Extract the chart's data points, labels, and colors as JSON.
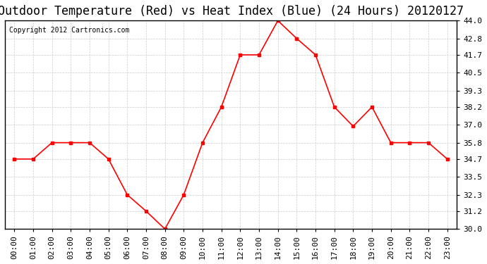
{
  "title": "Outdoor Temperature (Red) vs Heat Index (Blue) (24 Hours) 20120127",
  "copyright_text": "Copyright 2012 Cartronics.com",
  "x_labels": [
    "00:00",
    "01:00",
    "02:00",
    "03:00",
    "04:00",
    "05:00",
    "06:00",
    "07:00",
    "08:00",
    "09:00",
    "10:00",
    "11:00",
    "12:00",
    "13:00",
    "14:00",
    "15:00",
    "16:00",
    "17:00",
    "18:00",
    "19:00",
    "20:00",
    "21:00",
    "22:00",
    "23:00"
  ],
  "temp_values": [
    34.7,
    34.7,
    35.8,
    35.8,
    35.8,
    34.7,
    32.3,
    31.2,
    30.0,
    32.3,
    35.8,
    38.2,
    41.7,
    41.7,
    44.0,
    42.8,
    41.7,
    38.2,
    36.9,
    38.2,
    35.8,
    35.8,
    35.8,
    34.7
  ],
  "heat_index_values": null,
  "line_color": "#FF0000",
  "heat_index_color": "#0000FF",
  "marker": "s",
  "marker_size": 3,
  "ylim_min": 30.0,
  "ylim_max": 44.0,
  "yticks": [
    30.0,
    31.2,
    32.3,
    33.5,
    34.7,
    35.8,
    37.0,
    38.2,
    39.3,
    40.5,
    41.7,
    42.8,
    44.0
  ],
  "bg_color": "#FFFFFF",
  "grid_color": "#CCCCCC",
  "title_fontsize": 12,
  "copyright_fontsize": 7,
  "tick_fontsize": 8
}
